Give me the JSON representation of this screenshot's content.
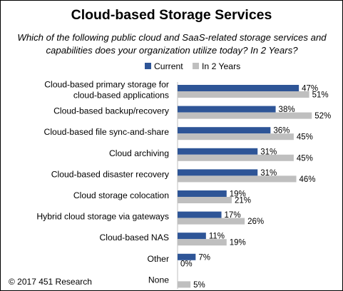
{
  "chart_data": {
    "type": "bar",
    "orientation": "horizontal",
    "title": "Cloud-based Storage Services",
    "subtitle": "Which of the following public cloud and SaaS-related storage services and capabilities does your organization utilize today? In 2 Years?",
    "categories": [
      [
        "Cloud-based primary storage for",
        "cloud-based applications"
      ],
      [
        "Cloud-based backup/recovery"
      ],
      [
        "Cloud-based file sync-and-share"
      ],
      [
        "Cloud archiving"
      ],
      [
        "Cloud-based disaster recovery"
      ],
      [
        "Cloud storage colocation"
      ],
      [
        "Hybrid cloud storage via gateways"
      ],
      [
        "Cloud-based NAS"
      ],
      [
        "Other"
      ],
      [
        "None"
      ]
    ],
    "series": [
      {
        "name": "Current",
        "color": "#2e5597",
        "values": [
          47,
          38,
          36,
          31,
          31,
          19,
          17,
          11,
          7,
          null
        ]
      },
      {
        "name": "In 2 Years",
        "color": "#bfbfbf",
        "values": [
          51,
          52,
          45,
          45,
          46,
          21,
          26,
          19,
          0,
          5
        ]
      }
    ],
    "value_suffix": "%",
    "xlim": [
      0,
      60
    ],
    "legend": "top",
    "grid": false
  },
  "footer": {
    "copyright": "© 2017 451 Research"
  }
}
